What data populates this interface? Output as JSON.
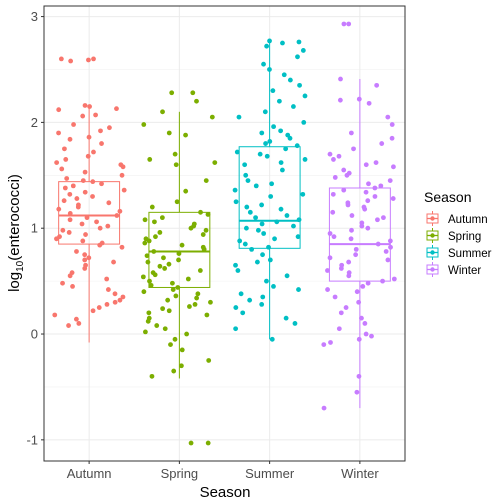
{
  "chart_data": {
    "type": "boxplot",
    "xlabel": "Season",
    "ylabel_main": "log",
    "ylabel_sub": "10",
    "ylabel_rest": "(enterococci)",
    "ylim": [
      -1.2,
      3.1
    ],
    "yticks": [
      -1,
      0,
      1,
      2,
      3
    ],
    "ytick_labels": [
      "-1",
      "0",
      "1",
      "2",
      "3"
    ],
    "grid": true,
    "legend_position": "right",
    "legend_title": "Season",
    "categories": [
      "Autumn",
      "Spring",
      "Summer",
      "Winter"
    ],
    "series": [
      {
        "name": "Autumn",
        "color": "#F8766D",
        "box": {
          "whisker_low": -0.08,
          "q1": 0.85,
          "median": 1.12,
          "q3": 1.44,
          "whisker_high": 2.16
        },
        "points": [
          2.59,
          2.6,
          2.6,
          2.58,
          2.16,
          2.15,
          2.12,
          2.13,
          2.07,
          2.06,
          1.98,
          1.95,
          1.92,
          1.9,
          1.86,
          1.84,
          1.8,
          1.75,
          1.72,
          1.68,
          1.65,
          1.62,
          1.6,
          1.58,
          1.56,
          1.53,
          1.5,
          1.47,
          1.45,
          1.44,
          1.42,
          1.4,
          1.38,
          1.36,
          1.34,
          1.32,
          1.3,
          1.28,
          1.26,
          1.24,
          1.22,
          1.2,
          1.18,
          1.16,
          1.14,
          1.12,
          1.1,
          1.08,
          1.06,
          1.04,
          1.02,
          1.0,
          0.98,
          0.96,
          0.94,
          0.92,
          0.9,
          0.88,
          0.86,
          0.84,
          0.82,
          0.78,
          0.75,
          0.72,
          0.7,
          0.68,
          0.65,
          0.62,
          0.58,
          0.55,
          0.52,
          0.48,
          0.45,
          0.42,
          0.38,
          0.35,
          0.32,
          0.3,
          0.28,
          0.25,
          0.22,
          0.18,
          0.14,
          0.1,
          0.08
        ]
      },
      {
        "name": "Spring",
        "color": "#7CAE00",
        "box": {
          "whisker_low": -0.42,
          "q1": 0.44,
          "median": 0.78,
          "q3": 1.15,
          "whisker_high": 2.1
        },
        "points": [
          2.28,
          2.28,
          2.2,
          2.1,
          2.05,
          1.98,
          1.9,
          1.88,
          1.7,
          1.65,
          1.62,
          1.6,
          1.45,
          1.35,
          1.25,
          1.2,
          1.15,
          1.13,
          1.1,
          1.08,
          1.06,
          1.04,
          1.02,
          1.0,
          0.98,
          0.96,
          0.94,
          0.92,
          0.9,
          0.88,
          0.86,
          0.84,
          0.82,
          0.8,
          0.78,
          0.76,
          0.74,
          0.72,
          0.7,
          0.68,
          0.66,
          0.64,
          0.62,
          0.6,
          0.58,
          0.56,
          0.54,
          0.52,
          0.5,
          0.48,
          0.46,
          0.44,
          0.42,
          0.4,
          0.38,
          0.36,
          0.34,
          0.32,
          0.3,
          0.28,
          0.26,
          0.24,
          0.22,
          0.2,
          0.18,
          0.15,
          0.12,
          0.08,
          0.05,
          0.02,
          0.0,
          -0.05,
          -0.1,
          -0.15,
          -0.25,
          -0.3,
          -0.35,
          -0.4,
          -1.03,
          -1.03
        ]
      },
      {
        "name": "Summer",
        "color": "#00BFC4",
        "box": {
          "whisker_low": -0.05,
          "q1": 0.81,
          "median": 1.07,
          "q3": 1.77,
          "whisker_high": 2.77
        },
        "points": [
          2.77,
          2.76,
          2.75,
          2.72,
          2.68,
          2.62,
          2.55,
          2.5,
          2.45,
          2.4,
          2.35,
          2.3,
          2.25,
          2.2,
          2.15,
          2.1,
          2.05,
          2.0,
          1.96,
          1.92,
          1.9,
          1.88,
          1.85,
          1.82,
          1.8,
          1.78,
          1.75,
          1.72,
          1.7,
          1.68,
          1.65,
          1.62,
          1.6,
          1.55,
          1.5,
          1.45,
          1.42,
          1.4,
          1.36,
          1.32,
          1.3,
          1.25,
          1.22,
          1.2,
          1.18,
          1.15,
          1.12,
          1.1,
          1.08,
          1.06,
          1.04,
          1.02,
          1.0,
          0.98,
          0.95,
          0.92,
          0.9,
          0.88,
          0.85,
          0.82,
          0.8,
          0.75,
          0.7,
          0.68,
          0.65,
          0.6,
          0.55,
          0.5,
          0.45,
          0.42,
          0.38,
          0.35,
          0.32,
          0.28,
          0.25,
          0.2,
          0.15,
          0.1,
          0.05,
          -0.05
        ]
      },
      {
        "name": "Winter",
        "color": "#C77CFF",
        "box": {
          "whisker_low": -0.7,
          "q1": 0.5,
          "median": 0.85,
          "q3": 1.38,
          "whisker_high": 2.41
        },
        "points": [
          2.93,
          2.93,
          2.41,
          2.35,
          2.22,
          2.21,
          2.18,
          2.05,
          1.98,
          1.9,
          1.85,
          1.8,
          1.75,
          1.7,
          1.68,
          1.65,
          1.62,
          1.6,
          1.58,
          1.55,
          1.52,
          1.5,
          1.48,
          1.45,
          1.42,
          1.4,
          1.38,
          1.36,
          1.34,
          1.32,
          1.3,
          1.28,
          1.26,
          1.24,
          1.22,
          1.2,
          1.18,
          1.15,
          1.12,
          1.1,
          1.08,
          1.05,
          1.02,
          1.0,
          0.98,
          0.95,
          0.92,
          0.9,
          0.88,
          0.85,
          0.82,
          0.8,
          0.78,
          0.75,
          0.72,
          0.7,
          0.68,
          0.65,
          0.62,
          0.6,
          0.58,
          0.55,
          0.52,
          0.5,
          0.48,
          0.45,
          0.42,
          0.4,
          0.35,
          0.3,
          0.25,
          0.2,
          0.15,
          0.1,
          0.05,
          0.0,
          -0.02,
          -0.05,
          -0.08,
          -0.1,
          -0.4,
          -0.55,
          -0.7
        ]
      }
    ]
  }
}
